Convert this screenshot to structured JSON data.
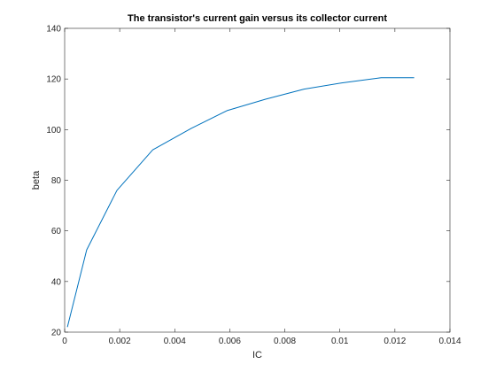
{
  "chart_data": {
    "type": "line",
    "title": "The transistor's current gain versus its collector current",
    "xlabel": "IC",
    "ylabel": "beta",
    "xlim": [
      0,
      0.014
    ],
    "ylim": [
      20,
      140
    ],
    "xticks": [
      0,
      0.002,
      0.004,
      0.006,
      0.008,
      0.01,
      0.012,
      0.014
    ],
    "yticks": [
      20,
      40,
      60,
      80,
      100,
      120,
      140
    ],
    "xtick_labels": [
      "0",
      "0.002",
      "0.004",
      "0.006",
      "0.008",
      "0.01",
      "0.012",
      "0.014"
    ],
    "ytick_labels": [
      "20",
      "40",
      "60",
      "80",
      "100",
      "120",
      "140"
    ],
    "grid": false,
    "box": true,
    "series": [
      {
        "color": "#0072bd",
        "x": [
          0.0001,
          0.0008,
          0.0019,
          0.0032,
          0.0046,
          0.0059,
          0.0073,
          0.0087,
          0.0101,
          0.0115,
          0.0127
        ],
        "y": [
          22,
          52.5,
          76,
          92,
          100.5,
          107.5,
          112,
          116,
          118.5,
          120.5,
          120.5
        ]
      }
    ]
  }
}
